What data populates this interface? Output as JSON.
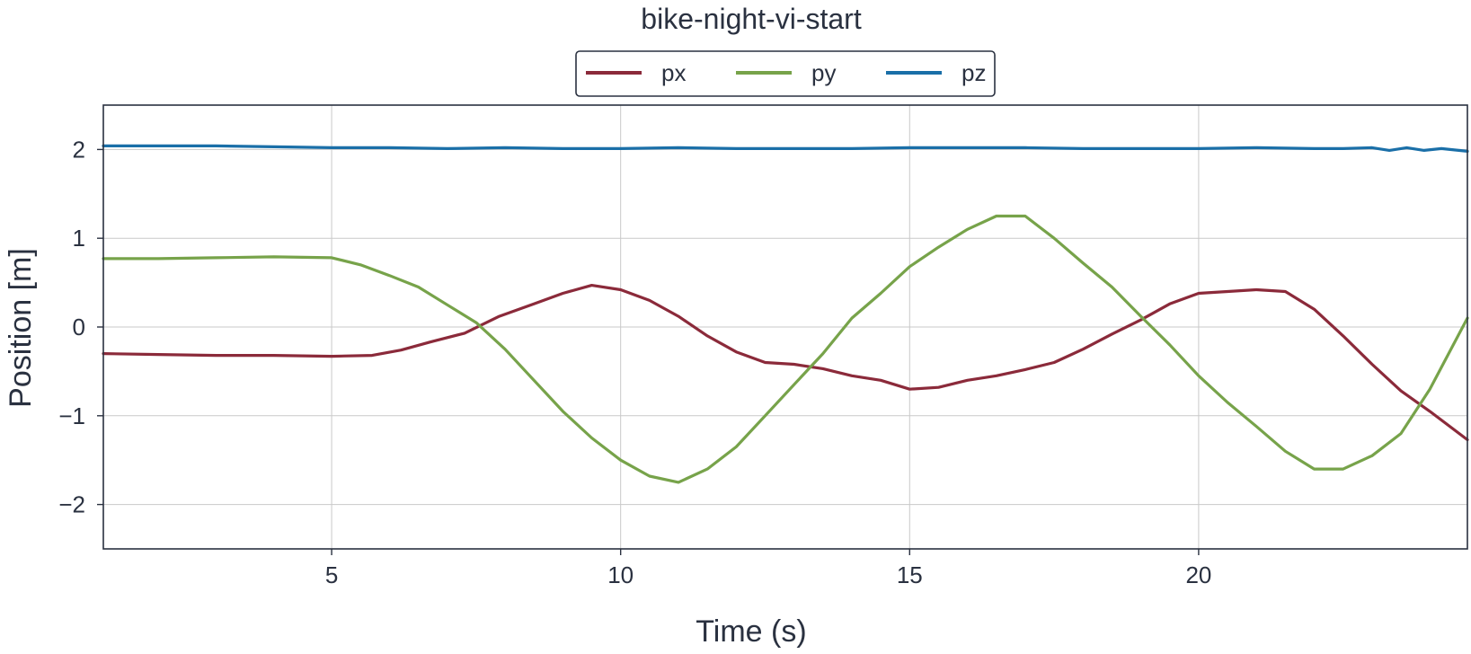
{
  "chart_data": {
    "type": "line",
    "title": "bike-night-vi-start",
    "xlabel": "Time (s)",
    "ylabel": "Position [m]",
    "xlim": [
      1.05,
      24.65
    ],
    "ylim": [
      -2.5,
      2.5
    ],
    "xticks": [
      5,
      10,
      15,
      20
    ],
    "xtick_labels": [
      "5",
      "10",
      "15",
      "20"
    ],
    "yticks": [
      2,
      1,
      0,
      -1,
      -2
    ],
    "ytick_labels": [
      "2",
      "1",
      "0",
      "−1",
      "−2"
    ],
    "grid": true,
    "legend_position": "top-center, above plot",
    "series": [
      {
        "name": "px",
        "color": "#8b2a3a",
        "x": [
          1.05,
          2.0,
          3.0,
          4.0,
          5.0,
          5.7,
          6.2,
          6.7,
          7.3,
          7.9,
          8.5,
          9.0,
          9.5,
          10.0,
          10.5,
          11.0,
          11.5,
          12.0,
          12.5,
          13.0,
          13.5,
          14.0,
          14.5,
          15.0,
          15.5,
          16.0,
          16.5,
          17.0,
          17.5,
          18.0,
          18.5,
          19.0,
          19.5,
          20.0,
          20.5,
          21.0,
          21.5,
          22.0,
          22.5,
          23.0,
          23.5,
          24.0,
          24.65
        ],
        "y": [
          -0.3,
          -0.31,
          -0.32,
          -0.32,
          -0.33,
          -0.32,
          -0.26,
          -0.17,
          -0.07,
          0.12,
          0.26,
          0.38,
          0.47,
          0.42,
          0.3,
          0.12,
          -0.1,
          -0.28,
          -0.4,
          -0.42,
          -0.47,
          -0.55,
          -0.6,
          -0.7,
          -0.68,
          -0.6,
          -0.55,
          -0.48,
          -0.4,
          -0.25,
          -0.08,
          0.08,
          0.26,
          0.38,
          0.4,
          0.42,
          0.4,
          0.2,
          -0.1,
          -0.42,
          -0.72,
          -0.95,
          -1.27
        ]
      },
      {
        "name": "py",
        "color": "#77a34a",
        "x": [
          1.05,
          2.0,
          3.0,
          4.0,
          5.0,
          5.5,
          6.0,
          6.5,
          7.0,
          7.5,
          8.0,
          8.5,
          9.0,
          9.5,
          10.0,
          10.5,
          11.0,
          11.5,
          12.0,
          12.5,
          13.0,
          13.5,
          14.0,
          14.5,
          15.0,
          15.5,
          16.0,
          16.5,
          17.0,
          17.5,
          18.0,
          18.5,
          19.0,
          19.5,
          20.0,
          20.5,
          21.0,
          21.5,
          22.0,
          22.5,
          23.0,
          23.5,
          24.0,
          24.65
        ],
        "y": [
          0.77,
          0.77,
          0.78,
          0.79,
          0.78,
          0.7,
          0.58,
          0.45,
          0.25,
          0.05,
          -0.25,
          -0.6,
          -0.95,
          -1.25,
          -1.5,
          -1.68,
          -1.75,
          -1.6,
          -1.35,
          -1.0,
          -0.65,
          -0.3,
          0.1,
          0.38,
          0.68,
          0.9,
          1.1,
          1.25,
          1.25,
          1.0,
          0.72,
          0.45,
          0.12,
          -0.2,
          -0.55,
          -0.85,
          -1.12,
          -1.4,
          -1.6,
          -1.6,
          -1.45,
          -1.2,
          -0.7,
          0.1
        ]
      },
      {
        "name": "pz",
        "color": "#1a6fa8",
        "x": [
          1.05,
          2.0,
          3.0,
          4.0,
          5.0,
          6.0,
          7.0,
          8.0,
          9.0,
          10.0,
          11.0,
          12.0,
          13.0,
          14.0,
          15.0,
          16.0,
          17.0,
          18.0,
          19.0,
          20.0,
          21.0,
          22.0,
          22.5,
          23.0,
          23.3,
          23.6,
          23.9,
          24.2,
          24.65
        ],
        "y": [
          2.04,
          2.04,
          2.04,
          2.03,
          2.02,
          2.02,
          2.01,
          2.02,
          2.01,
          2.01,
          2.02,
          2.01,
          2.01,
          2.01,
          2.02,
          2.02,
          2.02,
          2.01,
          2.01,
          2.01,
          2.02,
          2.01,
          2.01,
          2.02,
          1.99,
          2.02,
          1.99,
          2.01,
          1.98
        ]
      }
    ]
  }
}
